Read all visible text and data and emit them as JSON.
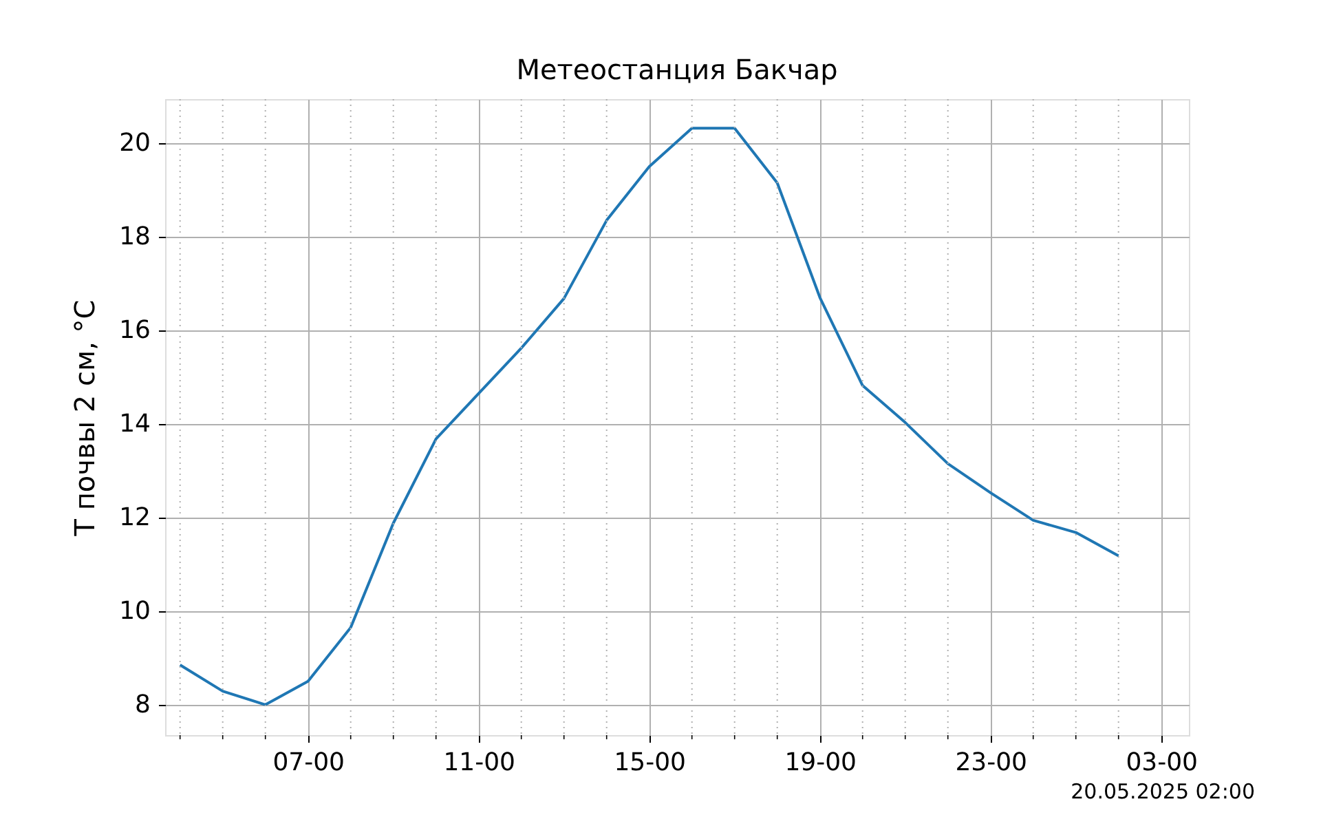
{
  "chart_data": {
    "type": "line",
    "title": "Метеостанция Бакчар",
    "ylabel": "T почвы 2 см, °C",
    "x": [
      "2025-05-19T04:00",
      "2025-05-19T05:00",
      "2025-05-19T06:00",
      "2025-05-19T07:00",
      "2025-05-19T08:00",
      "2025-05-19T09:00",
      "2025-05-19T10:00",
      "2025-05-19T11:00",
      "2025-05-19T12:00",
      "2025-05-19T13:00",
      "2025-05-19T14:00",
      "2025-05-19T15:00",
      "2025-05-19T16:00",
      "2025-05-19T17:00",
      "2025-05-19T18:00",
      "2025-05-19T19:00",
      "2025-05-19T20:00",
      "2025-05-19T21:00",
      "2025-05-19T22:00",
      "2025-05-19T23:00",
      "2025-05-20T00:00",
      "2025-05-20T01:00",
      "2025-05-20T02:00"
    ],
    "series": [
      {
        "color": "#1f77b4",
        "values": [
          8.85,
          8.29,
          8.0,
          8.5,
          9.65,
          11.88,
          13.68,
          14.65,
          15.62,
          16.68,
          18.35,
          19.5,
          20.32,
          20.32,
          19.15,
          16.7,
          14.82,
          14.03,
          13.15,
          12.53,
          11.94,
          11.68,
          11.18
        ]
      }
    ],
    "xlim": [
      "2025-05-19T03:39",
      "2025-05-20T03:39"
    ],
    "xticks": [
      {
        "value": "2025-05-19T04:00",
        "label": null
      },
      {
        "value": "2025-05-19T05:00",
        "label": null
      },
      {
        "value": "2025-05-19T06:00",
        "label": null
      },
      {
        "value": "2025-05-19T07:00",
        "label": "07-00"
      },
      {
        "value": "2025-05-19T08:00",
        "label": null
      },
      {
        "value": "2025-05-19T09:00",
        "label": null
      },
      {
        "value": "2025-05-19T10:00",
        "label": null
      },
      {
        "value": "2025-05-19T11:00",
        "label": "11-00"
      },
      {
        "value": "2025-05-19T12:00",
        "label": null
      },
      {
        "value": "2025-05-19T13:00",
        "label": null
      },
      {
        "value": "2025-05-19T14:00",
        "label": null
      },
      {
        "value": "2025-05-19T15:00",
        "label": "15-00"
      },
      {
        "value": "2025-05-19T16:00",
        "label": null
      },
      {
        "value": "2025-05-19T17:00",
        "label": null
      },
      {
        "value": "2025-05-19T18:00",
        "label": null
      },
      {
        "value": "2025-05-19T19:00",
        "label": "19-00"
      },
      {
        "value": "2025-05-19T20:00",
        "label": null
      },
      {
        "value": "2025-05-19T21:00",
        "label": null
      },
      {
        "value": "2025-05-19T22:00",
        "label": null
      },
      {
        "value": "2025-05-19T23:00",
        "label": "23-00"
      },
      {
        "value": "2025-05-20T00:00",
        "label": null
      },
      {
        "value": "2025-05-20T01:00",
        "label": null
      },
      {
        "value": "2025-05-20T02:00",
        "label": null
      },
      {
        "value": "2025-05-20T03:00",
        "label": "03-00"
      }
    ],
    "ylim": [
      7.35,
      20.94
    ],
    "yticks": [
      8,
      10,
      12,
      14,
      16,
      18,
      20
    ],
    "grid": true,
    "marker": "none",
    "line_style": "solid",
    "annotations": [
      "20.05.2025 02:00"
    ]
  }
}
